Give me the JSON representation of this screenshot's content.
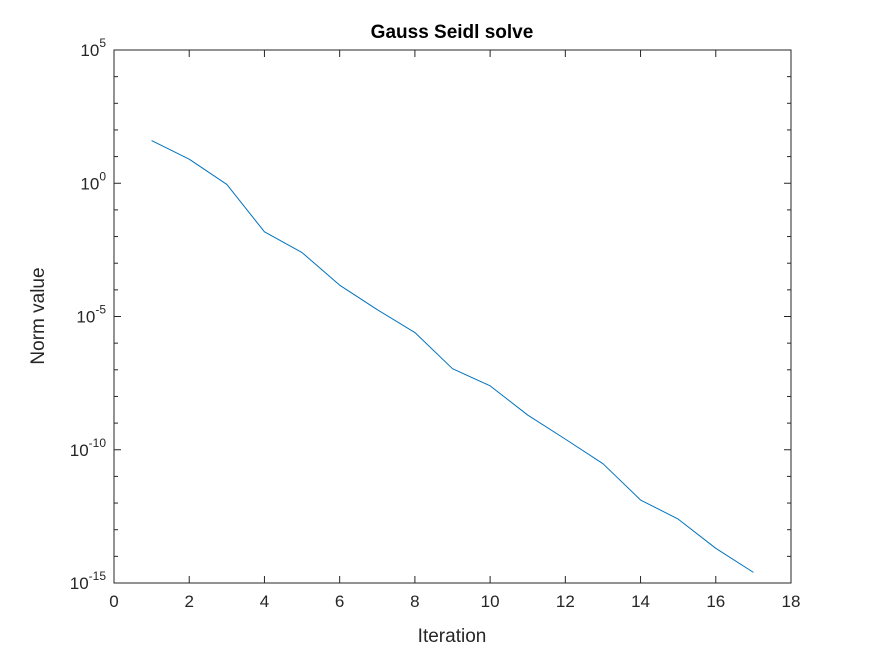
{
  "chart_data": {
    "type": "line",
    "title": "Gauss Seidl solve",
    "xlabel": "Iteration",
    "ylabel": "Norm value",
    "xlim": [
      0,
      18
    ],
    "ylim": [
      1e-15,
      100000
    ],
    "yscale": "log",
    "grid": false,
    "legend": "none",
    "x_ticks": [
      0,
      2,
      4,
      6,
      8,
      10,
      12,
      14,
      16,
      18
    ],
    "x_tick_labels": [
      "0",
      "2",
      "4",
      "6",
      "8",
      "10",
      "12",
      "14",
      "16",
      "18"
    ],
    "y_ticks": [
      {
        "base": "10",
        "exp": "5",
        "value": 100000
      },
      {
        "base": "10",
        "exp": "0",
        "value": 1
      },
      {
        "base": "10",
        "exp": "-5",
        "value": 1e-05
      },
      {
        "base": "10",
        "exp": "-10",
        "value": 1e-10
      },
      {
        "base": "10",
        "exp": "-15",
        "value": 1e-15
      }
    ],
    "series": [
      {
        "color": "#0072bd",
        "x": [
          1,
          2,
          3,
          4,
          5,
          6,
          7,
          8,
          9,
          10,
          11,
          12,
          13,
          14,
          15,
          16,
          17
        ],
        "y": [
          40,
          8,
          0.9,
          0.015,
          0.0025,
          0.00015,
          1.8e-05,
          2.5e-06,
          1.1e-07,
          2.5e-08,
          2e-09,
          2.5e-10,
          3e-11,
          1.3e-12,
          2.5e-13,
          2e-14,
          2.5e-15
        ]
      }
    ]
  }
}
